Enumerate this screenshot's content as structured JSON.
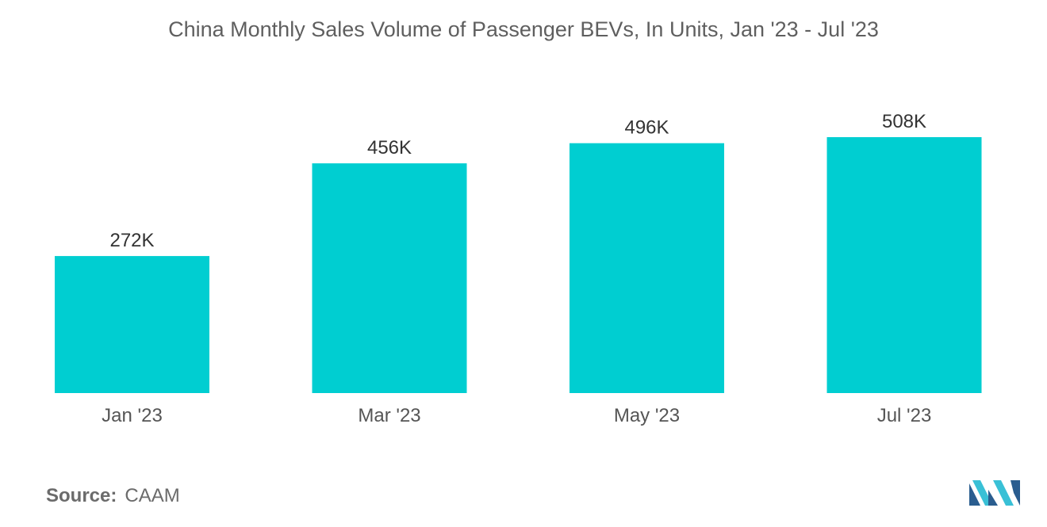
{
  "chart_data": {
    "type": "bar",
    "title": "China Monthly Sales Volume of Passenger BEVs, In Units, Jan '23 - Jul '23",
    "categories": [
      "Jan '23",
      "Mar '23",
      "May '23",
      "Jul '23"
    ],
    "values": [
      272,
      456,
      496,
      508
    ],
    "data_labels": [
      "272K",
      "456K",
      "496K",
      "508K"
    ],
    "unit": "K",
    "ylim": [
      0,
      560
    ],
    "grid": false,
    "legend": "none",
    "bar_color": "#00ced1"
  },
  "source": {
    "label": "Source:",
    "value": "CAAM"
  },
  "colors": {
    "title": "#5f5f5f",
    "axis_text": "#555555",
    "logo_dark": "#2a5d8f",
    "logo_light": "#39c0d6"
  }
}
